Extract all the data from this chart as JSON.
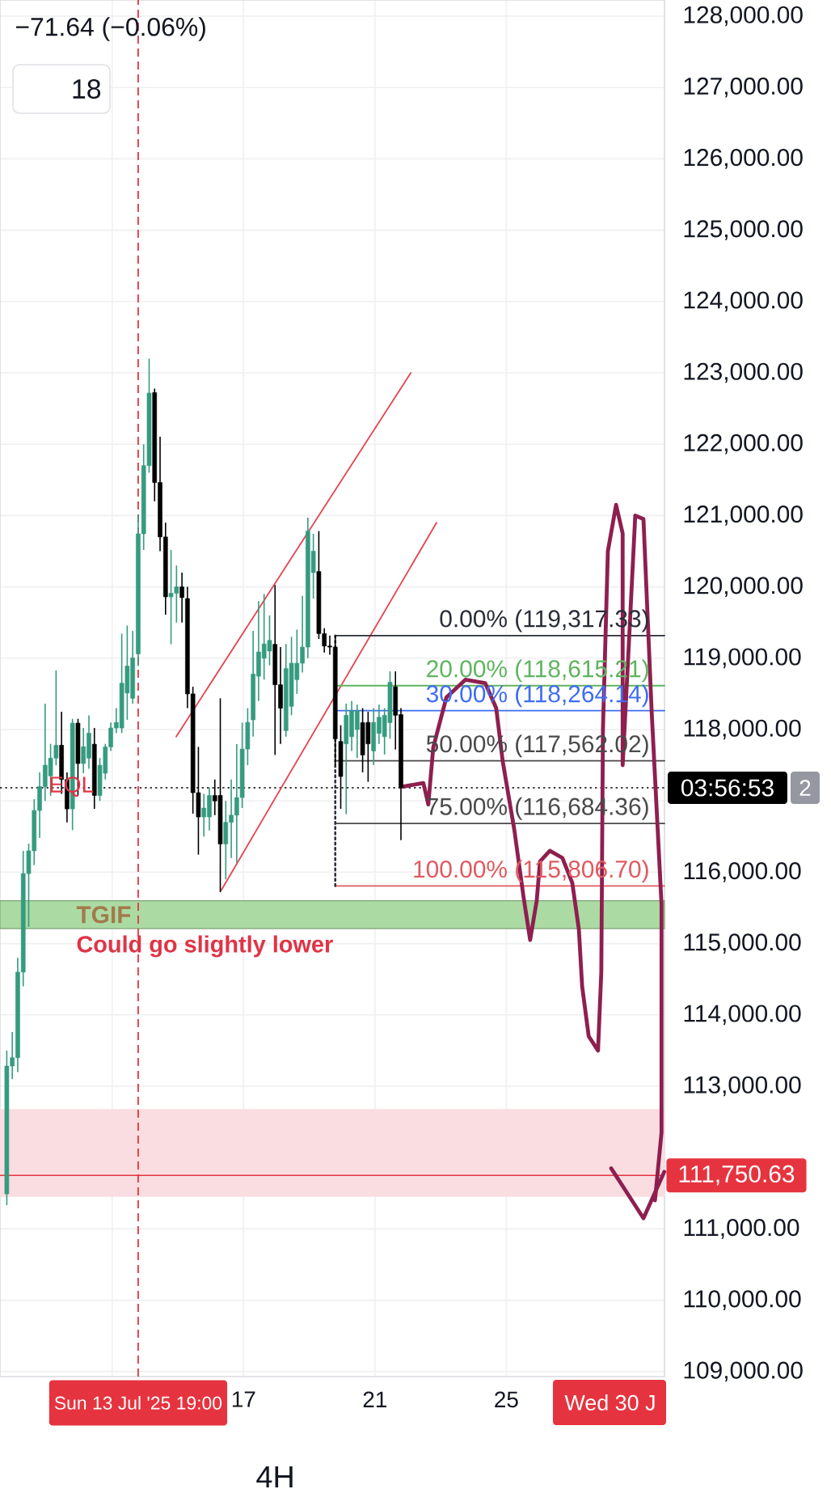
{
  "chart_data": {
    "type": "candlestick",
    "x": [
      "2025-07-09T19:00",
      "2025-07-09T23:00",
      "2025-07-10T03:00",
      "2025-07-10T07:00",
      "2025-07-10T11:00",
      "2025-07-10T15:00",
      "2025-07-10T19:00",
      "2025-07-10T23:00",
      "2025-07-11T03:00",
      "2025-07-11T07:00",
      "2025-07-11T11:00",
      "2025-07-11T15:00",
      "2025-07-11T19:00",
      "2025-07-11T23:00",
      "2025-07-12T03:00",
      "2025-07-12T07:00",
      "2025-07-12T11:00",
      "2025-07-12T15:00",
      "2025-07-12T19:00",
      "2025-07-12T23:00",
      "2025-07-13T03:00",
      "2025-07-13T07:00",
      "2025-07-13T11:00",
      "2025-07-13T15:00",
      "2025-07-13T19:00",
      "2025-07-13T23:00",
      "2025-07-14T03:00",
      "2025-07-14T07:00",
      "2025-07-14T11:00",
      "2025-07-14T15:00",
      "2025-07-14T19:00",
      "2025-07-14T23:00",
      "2025-07-15T03:00",
      "2025-07-15T07:00",
      "2025-07-15T11:00",
      "2025-07-15T15:00",
      "2025-07-15T19:00",
      "2025-07-15T23:00",
      "2025-07-16T03:00",
      "2025-07-16T07:00",
      "2025-07-16T11:00",
      "2025-07-16T15:00",
      "2025-07-16T19:00",
      "2025-07-16T23:00",
      "2025-07-17T03:00",
      "2025-07-17T07:00",
      "2025-07-17T11:00",
      "2025-07-17T15:00",
      "2025-07-17T19:00",
      "2025-07-17T23:00",
      "2025-07-18T03:00",
      "2025-07-18T07:00",
      "2025-07-18T11:00",
      "2025-07-18T15:00",
      "2025-07-18T19:00",
      "2025-07-18T23:00",
      "2025-07-19T03:00",
      "2025-07-19T07:00",
      "2025-07-19T11:00",
      "2025-07-19T15:00",
      "2025-07-19T19:00",
      "2025-07-19T23:00",
      "2025-07-20T03:00",
      "2025-07-20T07:00",
      "2025-07-20T11:00",
      "2025-07-20T15:00",
      "2025-07-20T19:00",
      "2025-07-20T23:00",
      "2025-07-21T03:00",
      "2025-07-21T07:00",
      "2025-07-21T11:00",
      "2025-07-21T15:00",
      "2025-07-21T19:00"
    ],
    "ohlc": [
      [
        111491,
        113500,
        111333,
        113283
      ],
      [
        113283,
        113759,
        113100,
        113400
      ],
      [
        113400,
        114800,
        113200,
        114600
      ],
      [
        114600,
        116300,
        114400,
        115981
      ],
      [
        115981,
        116400,
        115233,
        116300
      ],
      [
        116300,
        117024,
        116100,
        116866
      ],
      [
        116866,
        117400,
        116480,
        117200
      ],
      [
        117200,
        118364,
        117000,
        117501
      ],
      [
        117350,
        117800,
        117070,
        117600
      ],
      [
        117600,
        118830,
        117500,
        117780
      ],
      [
        117780,
        118250,
        117100,
        117300
      ],
      [
        117300,
        117400,
        116700,
        116888
      ],
      [
        116888,
        118150,
        116590,
        118090
      ],
      [
        118090,
        118150,
        117076,
        117524
      ],
      [
        117524,
        118022,
        117388,
        117760
      ],
      [
        117600,
        118200,
        117450,
        117950
      ],
      [
        117795,
        118022,
        116888,
        117076
      ],
      [
        117076,
        117600,
        117000,
        117500
      ],
      [
        117388,
        117800,
        117300,
        117757
      ],
      [
        117757,
        118100,
        117700,
        118022
      ],
      [
        118022,
        118300,
        117950,
        118100
      ],
      [
        118022,
        119345,
        117950,
        118650
      ],
      [
        118512,
        119458,
        118136,
        118890
      ],
      [
        118438,
        119383,
        118362,
        119005
      ],
      [
        119059,
        121009,
        118890,
        120744
      ],
      [
        120744,
        122000,
        120517,
        121700
      ],
      [
        121700,
        123200,
        121600,
        122717
      ],
      [
        122724,
        122780,
        121200,
        121463
      ],
      [
        121463,
        122104,
        120500,
        120700
      ],
      [
        120700,
        120900,
        119610,
        119860
      ],
      [
        119860,
        120517,
        119195,
        119911
      ],
      [
        119911,
        120300,
        119500,
        120000
      ],
      [
        120000,
        120200,
        119500,
        119850
      ],
      [
        119837,
        120000,
        118300,
        118500
      ],
      [
        118500,
        118600,
        116821,
        117115
      ],
      [
        117115,
        117757,
        116247,
        116775
      ],
      [
        116775,
        117100,
        116500,
        116900
      ],
      [
        116775,
        117189,
        116586,
        117076
      ],
      [
        117076,
        117300,
        116800,
        117000
      ],
      [
        117077,
        118438,
        115720,
        116396
      ],
      [
        116396,
        117000,
        115900,
        116700
      ],
      [
        116700,
        117300,
        116200,
        116800
      ],
      [
        116800,
        117795,
        116136,
        117047
      ],
      [
        117047,
        118097,
        116900,
        117727
      ],
      [
        117727,
        118300,
        117500,
        118100
      ],
      [
        118136,
        119383,
        117900,
        118778
      ],
      [
        118748,
        119799,
        118400,
        119088
      ],
      [
        119000,
        119900,
        118700,
        119200
      ],
      [
        119100,
        119600,
        118900,
        119250
      ],
      [
        119195,
        120025,
        117644,
        118628
      ],
      [
        118628,
        119156,
        117800,
        118300
      ],
      [
        117985,
        119200,
        117900,
        118855
      ],
      [
        118325,
        119300,
        118200,
        118930
      ],
      [
        118700,
        119400,
        118500,
        118930
      ],
      [
        118930,
        119875,
        118800,
        119156
      ],
      [
        119156,
        120970,
        119000,
        120782
      ],
      [
        120200,
        120744,
        119837,
        120500
      ],
      [
        120215,
        120782,
        119270,
        119345
      ],
      [
        119345,
        119420,
        119080,
        119171
      ],
      [
        119171,
        119317,
        119050,
        119156
      ],
      [
        119156,
        119317,
        117500,
        117871
      ],
      [
        117833,
        118061,
        116888,
        117342
      ],
      [
        117800,
        118362,
        116813,
        118200
      ],
      [
        117900,
        118400,
        117700,
        118264
      ],
      [
        118000,
        118350,
        117600,
        118264
      ],
      [
        118097,
        118300,
        117400,
        117644
      ],
      [
        118100,
        118250,
        117267,
        117800
      ],
      [
        117700,
        118300,
        117500,
        118100
      ],
      [
        117946,
        118350,
        117800,
        118173
      ],
      [
        117900,
        118300,
        117650,
        118200
      ],
      [
        118097,
        118816,
        117871,
        118664
      ],
      [
        118600,
        118816,
        117720,
        118200
      ],
      [
        118210,
        118300,
        116450,
        117184
      ]
    ],
    "colors": [
      "#359b7f",
      "#359b7f",
      "#359b7f",
      "#359b7f",
      "#359b7f",
      "#359b7f",
      "#359b7f",
      "#359b7f",
      "#359b7f",
      "#359b7f",
      "#000000",
      "#000000",
      "#359b7f",
      "#000000",
      "#359b7f",
      "#359b7f",
      "#000000",
      "#359b7f",
      "#359b7f",
      "#359b7f",
      "#359b7f",
      "#359b7f",
      "#359b7f",
      "#359b7f",
      "#359b7f",
      "#359b7f",
      "#359b7f",
      "#000000",
      "#000000",
      "#000000",
      "#359b7f",
      "#359b7f",
      "#000000",
      "#000000",
      "#000000",
      "#000000",
      "#359b7f",
      "#359b7f",
      "#000000",
      "#000000",
      "#359b7f",
      "#359b7f",
      "#359b7f",
      "#359b7f",
      "#359b7f",
      "#359b7f",
      "#359b7f",
      "#359b7f",
      "#359b7f",
      "#000000",
      "#000000",
      "#359b7f",
      "#359b7f",
      "#359b7f",
      "#359b7f",
      "#359b7f",
      "#359b7f",
      "#000000",
      "#000000",
      "#000000",
      "#000000",
      "#000000",
      "#359b7f",
      "#359b7f",
      "#359b7f",
      "#000000",
      "#000000",
      "#359b7f",
      "#359b7f",
      "#359b7f",
      "#359b7f",
      "#000000",
      "#000000"
    ],
    "xlim": [
      "2025-07-09T14:02",
      "2025-07-29T19:34"
    ],
    "ylim": [
      108930,
      128227
    ],
    "xticks": [
      {
        "value": "2025-07-13",
        "label": null
      },
      {
        "value": "2025-07-17",
        "label": "17"
      },
      {
        "value": "2025-07-21",
        "label": "21"
      },
      {
        "value": "2025-07-25",
        "label": "25"
      }
    ],
    "yticks": [
      {
        "value": 128000,
        "label": "128,000.00"
      },
      {
        "value": 127000,
        "label": "127,000.00"
      },
      {
        "value": 126000,
        "label": "126,000.00"
      },
      {
        "value": 125000,
        "label": "125,000.00"
      },
      {
        "value": 124000,
        "label": "124,000.00"
      },
      {
        "value": 123000,
        "label": "123,000.00"
      },
      {
        "value": 122000,
        "label": "122,000.00"
      },
      {
        "value": 121000,
        "label": "121,000.00"
      },
      {
        "value": 120000,
        "label": "120,000.00"
      },
      {
        "value": 119000,
        "label": "119,000.00"
      },
      {
        "value": 118000,
        "label": "118,000.00"
      },
      {
        "value": 117000,
        "label": null
      },
      {
        "value": 116000,
        "label": "116,000.00"
      },
      {
        "value": 115000,
        "label": "115,000.00"
      },
      {
        "value": 114000,
        "label": "114,000.00"
      },
      {
        "value": 113000,
        "label": "113,000.00"
      },
      {
        "value": 112000,
        "label": null
      },
      {
        "value": 111000,
        "label": "111,000.00"
      },
      {
        "value": 110000,
        "label": "110,000.00"
      },
      {
        "value": 109000,
        "label": "109,000.00"
      }
    ],
    "grid": true,
    "series": [
      {
        "type": "line",
        "color": "#e5434f",
        "x": [
          "2025-07-14T22:48",
          "2025-07-22T02:12"
        ],
        "values": [
          117900,
          123000
        ]
      },
      {
        "type": "line",
        "color": "#e5434f",
        "x": [
          "2025-07-16T07:48",
          "2025-07-22T21:00"
        ],
        "values": [
          115750,
          120900
        ]
      },
      {
        "type": "line",
        "name": "0.00% (119,317.33)",
        "color": "#2a2e39",
        "x": [
          "2025-07-19T19:00",
          "2025-07-29T19:34"
        ],
        "values": [
          119317.33,
          119317.33
        ]
      },
      {
        "type": "line",
        "name": "20.00% (118,615.21)",
        "color": "#5fb55f",
        "x": [
          "2025-07-19T19:00",
          "2025-07-29T19:34"
        ],
        "values": [
          118615.21,
          118615.21
        ]
      },
      {
        "type": "line",
        "name": "30.00% (118,264.14)",
        "color": "#3d6df2",
        "x": [
          "2025-07-19T19:00",
          "2025-07-29T19:34"
        ],
        "values": [
          118264.14,
          118264.14
        ]
      },
      {
        "type": "line",
        "name": "50.00% (117,562.02)",
        "color": "#4a4a4a",
        "x": [
          "2025-07-19T19:00",
          "2025-07-29T19:34"
        ],
        "values": [
          117562.02,
          117562.02
        ]
      },
      {
        "type": "line",
        "name": "75.00% (116,684.36)",
        "color": "#4a4a4a",
        "x": [
          "2025-07-19T19:00",
          "2025-07-29T19:34"
        ],
        "values": [
          116684.36,
          116684.36
        ]
      },
      {
        "type": "line",
        "name": "100.00% (115,806.70)",
        "color": "#e05a5f",
        "x": [
          "2025-07-19T19:00",
          "2025-07-29T19:34"
        ],
        "values": [
          115806.7,
          115806.7
        ]
      },
      {
        "type": "line",
        "color": "#2a2e39",
        "line_style": "dotted",
        "x": [
          "2025-07-19T19:00",
          "2025-07-19T19:00"
        ],
        "values": [
          119317.33,
          115806.7
        ]
      },
      {
        "type": "line",
        "color": "#8e1f4f",
        "x": [
          "2025-07-21T20:12",
          "2025-07-22T11:24",
          "2025-07-22T15:00",
          "2025-07-22T18:36",
          "2025-07-23T04:12",
          "2025-07-23T18:12",
          "2025-07-24T08:36",
          "2025-07-24T16:36",
          "2025-07-24T21:24",
          "2025-07-25T05:48",
          "2025-07-25T12:36",
          "2025-07-25T17:24",
          "2025-07-25T22:12",
          "2025-07-26T00:36",
          "2025-07-26T07:48",
          "2025-07-26T17:00",
          "2025-07-27T00:12",
          "2025-07-27T05:00",
          "2025-07-27T07:24",
          "2025-07-27T12:12",
          "2025-07-27T19:00",
          "2025-07-27T21:24",
          "2025-07-27T22:36",
          "2025-07-28T02:12",
          "2025-07-28T08:12",
          "2025-07-28T13:00",
          "2025-07-28T13:00",
          "2025-07-28T17:24",
          "2025-07-28T22:12",
          "2025-07-29T04:12",
          "2025-07-29T10:12",
          "2025-07-29T17:24",
          "2025-07-29T17:24",
          "2025-07-29T12:36"
        ],
        "values": [
          117200,
          117250,
          116950,
          117750,
          118450,
          118700,
          118650,
          118300,
          117550,
          116600,
          115650,
          115050,
          115600,
          116150,
          116300,
          116200,
          115850,
          115200,
          114400,
          113700,
          113500,
          114600,
          118000,
          120500,
          121150,
          120750,
          117500,
          119150,
          121000,
          120950,
          118250,
          115550,
          112350,
          111400
        ]
      },
      {
        "type": "line",
        "color": "#8e1f4f",
        "x": [
          "2025-07-28T04:36",
          "2025-07-29T04:12",
          "2025-07-29T19:24"
        ],
        "values": [
          111850,
          111150,
          111800
        ]
      }
    ],
    "ref_lines": [
      {
        "axis": "x",
        "value": "2025-07-13T19:00",
        "label": "Sun 13 Jul '25 19:00",
        "color": "#e5343f",
        "line_style": "dashed"
      },
      {
        "axis": "y",
        "value": 111750.63,
        "label": "111,750.63",
        "color": "#e5343f"
      },
      {
        "axis": "y",
        "value": 117184,
        "color": "#000000",
        "line_style": "dotted"
      }
    ],
    "bands": [
      {
        "axis": "y",
        "from": 111450,
        "to": 112680,
        "color": "#f9dde1"
      },
      {
        "axis": "y",
        "from": 115210,
        "to": 115600,
        "label": "TGIF",
        "color": "#abdba3"
      }
    ],
    "annotations": [
      "−71.64 (−0.06%)",
      "18",
      "Wed 30 J",
      "2",
      "4H",
      "Could go slightly lower",
      "03:56:53",
      {
        "text": "EQL",
        "x": "2025-07-11T01:24",
        "y": 117200
      }
    ]
  }
}
